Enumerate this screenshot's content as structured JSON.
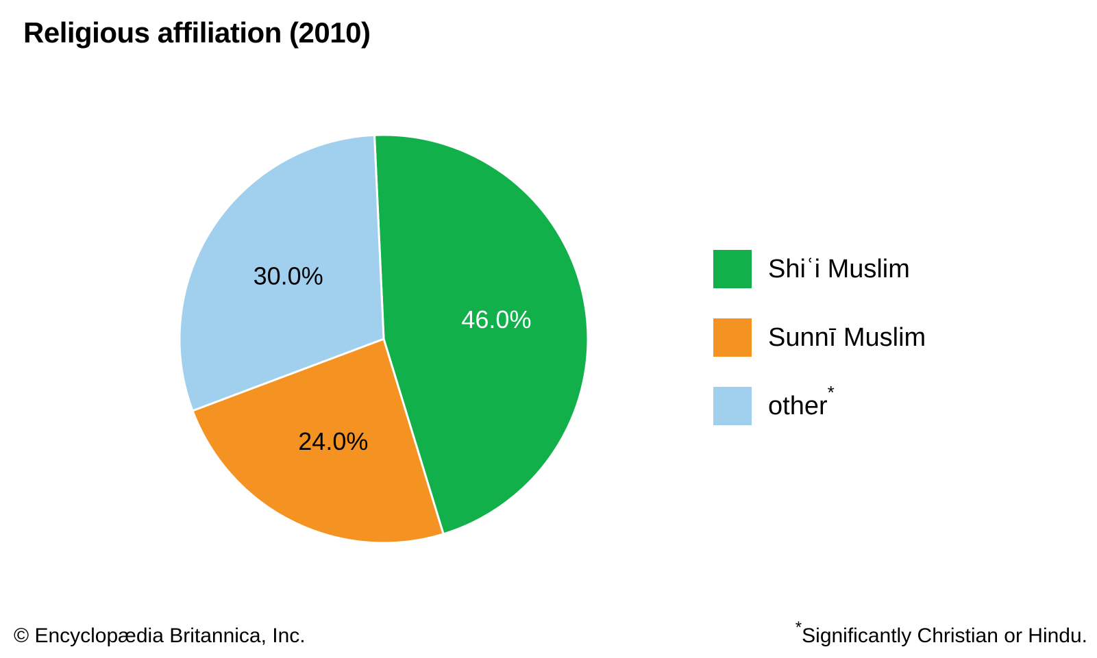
{
  "chart_data": {
    "type": "pie",
    "title": "Religious affiliation (2010)",
    "slices": [
      {
        "label": "Shiʿi Muslim",
        "value": 46.0,
        "display": "46.0%",
        "color": "#12b04b",
        "text_color": "#ffffff"
      },
      {
        "label": "Sunnī Muslim",
        "value": 24.0,
        "display": "24.0%",
        "color": "#f59322",
        "text_color": "#000000"
      },
      {
        "label": "other",
        "value": 30.0,
        "display": "30.0%",
        "color": "#a1cfee",
        "text_color": "#000000",
        "marker": "*"
      }
    ],
    "legend_placement": "right"
  },
  "footer": {
    "copyright": "© Encyclopædia Britannica, Inc.",
    "note_marker": "*",
    "note": "Significantly Christian or Hindu."
  }
}
